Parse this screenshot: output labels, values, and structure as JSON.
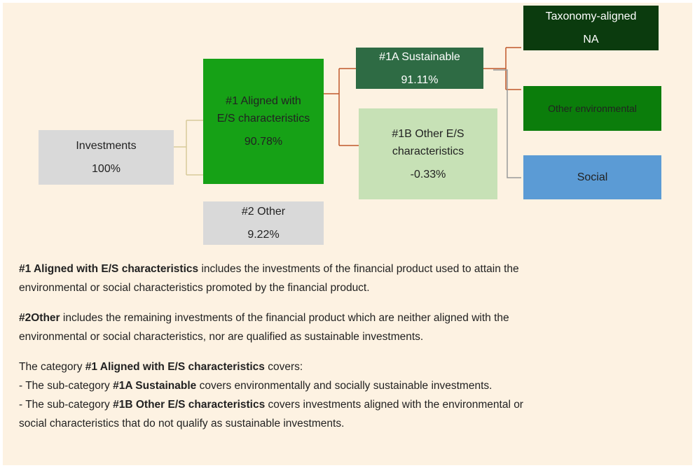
{
  "nodes": [
    {
      "lines": [
        "Investments",
        "100%"
      ]
    },
    {
      "lines": [
        "#1 Aligned with",
        "E/S characteristics",
        "90.78%"
      ]
    },
    {
      "lines": [
        "#2 Other",
        "9.22%"
      ]
    },
    {
      "lines": [
        "#1A Sustainable",
        "91.11%"
      ]
    },
    {
      "lines": [
        "#1B Other E/S",
        "characteristics",
        "-0.33%"
      ]
    },
    {
      "lines": [
        "Taxonomy-aligned",
        "NA"
      ]
    },
    {
      "lines": [
        "Other environmental"
      ]
    },
    {
      "lines": [
        "Social"
      ]
    }
  ],
  "paragraphs": [
    {
      "lines": [
        [
          {
            "text": "#1 Aligned with E/S characteristics",
            "bold": true
          },
          {
            "text": " includes the investments of the financial product used to attain the"
          }
        ],
        [
          {
            "text": "environmental or social characteristics promoted by the financial product."
          }
        ]
      ]
    },
    {
      "lines": [
        [
          {
            "text": "#2Other",
            "bold": true
          },
          {
            "text": " includes the remaining investments of the financial product which are neither aligned with the"
          }
        ],
        [
          {
            "text": "environmental or social characteristics, nor are qualified as sustainable investments."
          }
        ]
      ]
    },
    {
      "lines": [
        [
          {
            "text": "The category "
          },
          {
            "text": "#1 Aligned with E/S characteristics",
            "bold": true
          },
          {
            "text": " covers:"
          }
        ],
        [
          {
            "text": "- The sub-category "
          },
          {
            "text": "#1A Sustainable",
            "bold": true
          },
          {
            "text": " covers environmentally and socially sustainable investments."
          }
        ],
        [
          {
            "text": "- The sub-category "
          },
          {
            "text": "#1B Other E/S characteristics",
            "bold": true
          },
          {
            "text": " covers investments aligned with the environmental or"
          }
        ],
        [
          {
            "text": "social characteristics that do not qualify as sustainable investments."
          }
        ]
      ]
    }
  ]
}
